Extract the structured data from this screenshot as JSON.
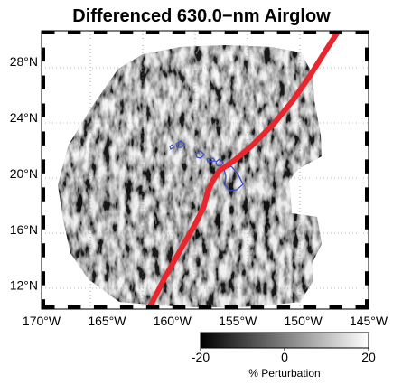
{
  "title": "Differenced 630.0−nm Airglow",
  "map": {
    "lon_range": [
      -170,
      -145
    ],
    "lat_range": [
      10.3,
      30.2
    ],
    "lon_ticks": [
      {
        "value": -170,
        "label": "170°W"
      },
      {
        "value": -165,
        "label": "165°W"
      },
      {
        "value": -160,
        "label": "160°W"
      },
      {
        "value": -155,
        "label": "155°W"
      },
      {
        "value": -150,
        "label": "150°W"
      },
      {
        "value": -145,
        "label": "145°W"
      }
    ],
    "lat_ticks": [
      {
        "value": 12,
        "label": "12°N"
      },
      {
        "value": 16,
        "label": "16°N"
      },
      {
        "value": 20,
        "label": "20°N"
      },
      {
        "value": 24,
        "label": "24°N"
      },
      {
        "value": 28,
        "label": "28°N"
      }
    ],
    "grid": "dotted",
    "frame": "checkered black and white border",
    "data_footprint": "circular all-sky imager field of view centred near Hawaii",
    "islands_color": "#3a4fd0",
    "track_color": "#e8262d",
    "track_path": [
      [
        -161.8,
        10.3
      ],
      [
        -160.6,
        12.5
      ],
      [
        -159.4,
        14.5
      ],
      [
        -158.3,
        16.3
      ],
      [
        -157.6,
        17.6
      ],
      [
        -157.3,
        18.7
      ],
      [
        -156.9,
        19.5
      ],
      [
        -156.4,
        20.2
      ],
      [
        -155.3,
        20.9
      ],
      [
        -153.9,
        22.0
      ],
      [
        -152.2,
        23.6
      ],
      [
        -150.8,
        25.2
      ],
      [
        -149.4,
        27.1
      ],
      [
        -148.2,
        28.9
      ],
      [
        -147.3,
        30.2
      ]
    ]
  },
  "colorbar": {
    "min": -20,
    "max": 20,
    "colormap": "gray (black to white)",
    "ticks": [
      {
        "value": -20,
        "label": "-20"
      },
      {
        "value": 0,
        "label": "0"
      },
      {
        "value": 20,
        "label": "20"
      }
    ],
    "label": "% Perturbation"
  }
}
